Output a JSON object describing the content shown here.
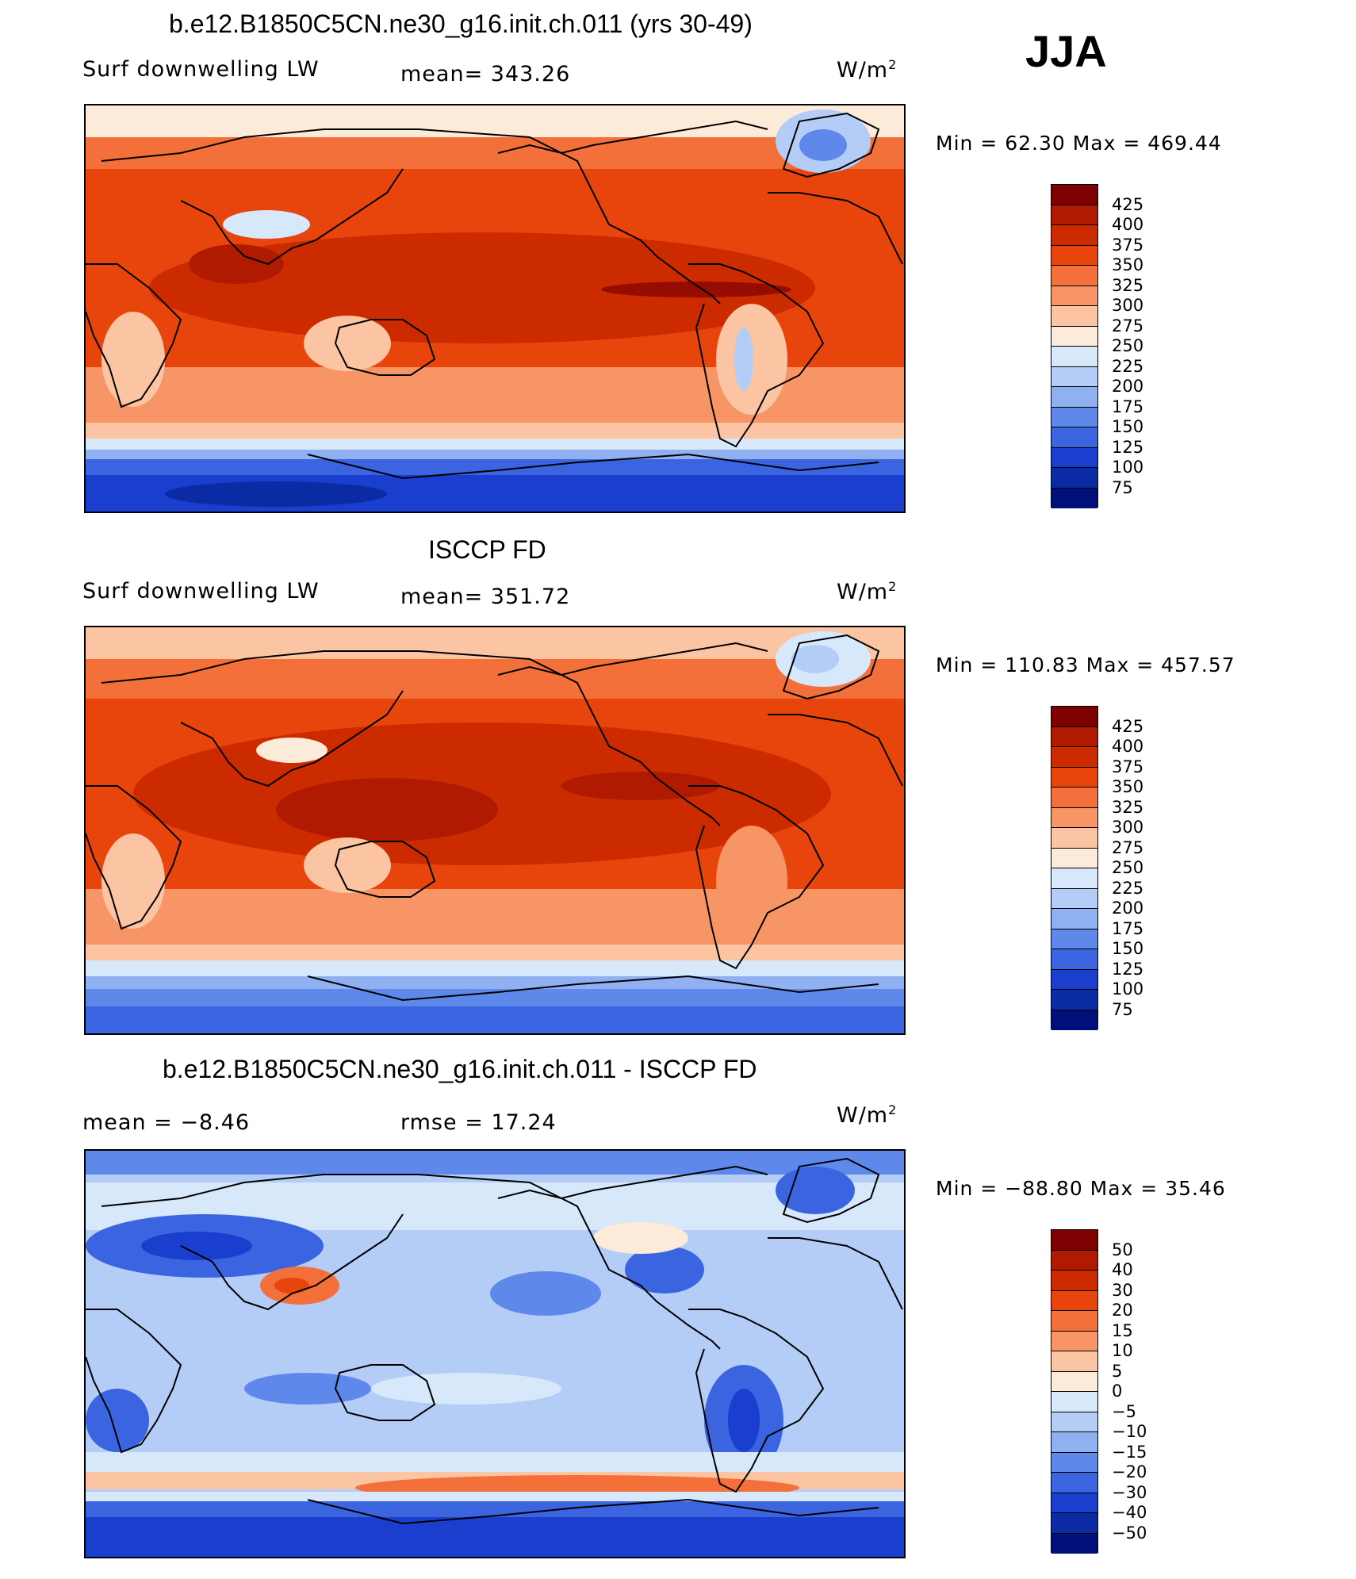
{
  "season": "JJA",
  "units_html": "W/m",
  "units_sup": "2",
  "panels": [
    {
      "title": "b.e12.B1850C5CN.ne30_g16.init.ch.011 (yrs 30-49)",
      "left_label": "Surf downwelling LW",
      "center_label": "mean= 343.26",
      "minmax": "Min =   62.30 Max = 469.44",
      "colorbar_labels": [
        "425",
        "400",
        "375",
        "350",
        "325",
        "300",
        "275",
        "250",
        "225",
        "200",
        "175",
        "150",
        "125",
        "100",
        "75"
      ]
    },
    {
      "title": "ISCCP FD",
      "left_label": "Surf downwelling LW",
      "center_label": "mean= 351.72",
      "minmax": "Min = 110.83 Max = 457.57",
      "colorbar_labels": [
        "425",
        "400",
        "375",
        "350",
        "325",
        "300",
        "275",
        "250",
        "225",
        "200",
        "175",
        "150",
        "125",
        "100",
        "75"
      ]
    },
    {
      "title": "b.e12.B1850C5CN.ne30_g16.init.ch.011 - ISCCP FD",
      "left_label": "mean =   −8.46",
      "center_label": "rmse =   17.24",
      "minmax": "Min = −88.80 Max =   35.46",
      "colorbar_labels": [
        "50",
        "40",
        "30",
        "20",
        "15",
        "10",
        "5",
        "0",
        "−5",
        "−10",
        "−15",
        "−20",
        "−30",
        "−40",
        "−50"
      ]
    }
  ],
  "colorbar_colors": [
    "#7f0000",
    "#b01a00",
    "#cc2b00",
    "#e8450d",
    "#f3703a",
    "#f79567",
    "#fbc4a2",
    "#fdebd9",
    "#d7e8fb",
    "#b4cdf7",
    "#8fb0f1",
    "#5e88ea",
    "#3a64e0",
    "#1a3fcf",
    "#0b2ba4",
    "#000f7a"
  ],
  "map_colors": {
    "ocean_warm": "#e8450d",
    "ocean_hot": "#cc2b00",
    "ocean_mid": "#f79567",
    "land": "#fbc4a2",
    "cold": "#d7e8fb",
    "polar": "#3a64e0",
    "polar_deep": "#1a3fcf",
    "diff_base": "#b4cdf7",
    "diff_light": "#d7e8fb",
    "diff_blue": "#5e88ea",
    "diff_red": "#f3703a"
  }
}
